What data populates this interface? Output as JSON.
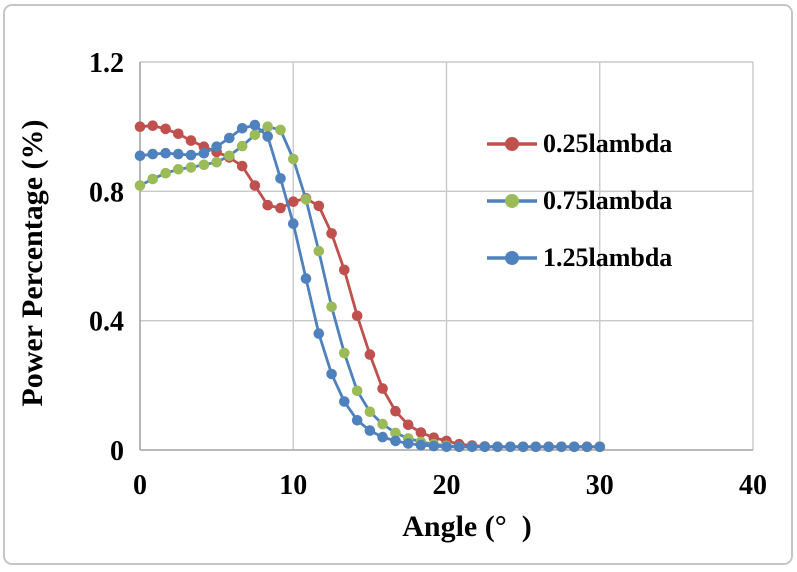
{
  "style": {
    "background": "#ffffff",
    "frame_border_color": "#c6c6c6",
    "grid_color": "#c9c9c9",
    "axis_color": "#a3a3a3",
    "text_color": "#000000",
    "red": "#c0504d",
    "green": "#9bbb59",
    "blue": "#4f81bd"
  },
  "chart_data": {
    "type": "line",
    "xlabel": "Angle (°  )",
    "ylabel": "Power Percentage (%)",
    "xlim": [
      0,
      40
    ],
    "ylim": [
      0,
      1.2
    ],
    "grid": true,
    "legend_position": "inside right",
    "x_ticks": [
      0,
      10,
      20,
      30,
      40
    ],
    "x_tick_labels": [
      "0",
      "10",
      "20",
      "30",
      "40"
    ],
    "y_ticks": [
      0,
      0.4,
      0.8,
      1.2
    ],
    "y_tick_labels": [
      "0",
      "0.4",
      "0.8",
      "1.2"
    ],
    "x": [
      0,
      0.83,
      1.67,
      2.5,
      3.33,
      4.17,
      5,
      5.83,
      6.67,
      7.5,
      8.33,
      9.17,
      10,
      10.83,
      11.67,
      12.5,
      13.33,
      14.17,
      15,
      15.83,
      16.67,
      17.5,
      18.33,
      19.17,
      20,
      20.83,
      21.67,
      22.5,
      23.33,
      24.17,
      25,
      25.83,
      26.67,
      27.5,
      28.33,
      29.17,
      30
    ],
    "series": [
      {
        "name": "0.25lambda",
        "line_color": "#c0504d",
        "marker_color": "#c0504d",
        "values": [
          1.0,
          1.003,
          0.993,
          0.978,
          0.957,
          0.938,
          0.922,
          0.905,
          0.878,
          0.818,
          0.757,
          0.748,
          0.768,
          0.778,
          0.755,
          0.67,
          0.557,
          0.415,
          0.295,
          0.19,
          0.12,
          0.078,
          0.054,
          0.038,
          0.028,
          0.018,
          0.014,
          0.011,
          0.01,
          0.01,
          0.01,
          0.01,
          0.01,
          0.01,
          0.01,
          0.01,
          0.01
        ]
      },
      {
        "name": "0.75lambda",
        "line_color": "#4f81bd",
        "marker_color": "#9bbb59",
        "values": [
          0.818,
          0.838,
          0.856,
          0.868,
          0.874,
          0.882,
          0.89,
          0.91,
          0.94,
          0.975,
          1.0,
          0.99,
          0.9,
          0.775,
          0.615,
          0.443,
          0.3,
          0.183,
          0.118,
          0.08,
          0.053,
          0.036,
          0.025,
          0.018,
          0.013,
          0.01,
          0.01,
          0.01,
          0.01,
          0.01,
          0.01,
          0.01,
          0.01,
          0.01,
          0.01,
          0.01,
          0.01
        ]
      },
      {
        "name": "1.25lambda",
        "line_color": "#4f81bd",
        "marker_color": "#4f81bd",
        "values": [
          0.91,
          0.915,
          0.918,
          0.915,
          0.912,
          0.918,
          0.938,
          0.965,
          0.995,
          1.005,
          0.97,
          0.84,
          0.7,
          0.53,
          0.36,
          0.235,
          0.15,
          0.092,
          0.06,
          0.04,
          0.028,
          0.02,
          0.015,
          0.012,
          0.01,
          0.01,
          0.01,
          0.01,
          0.01,
          0.01,
          0.01,
          0.01,
          0.01,
          0.01,
          0.01,
          0.01,
          0.01
        ]
      }
    ]
  }
}
